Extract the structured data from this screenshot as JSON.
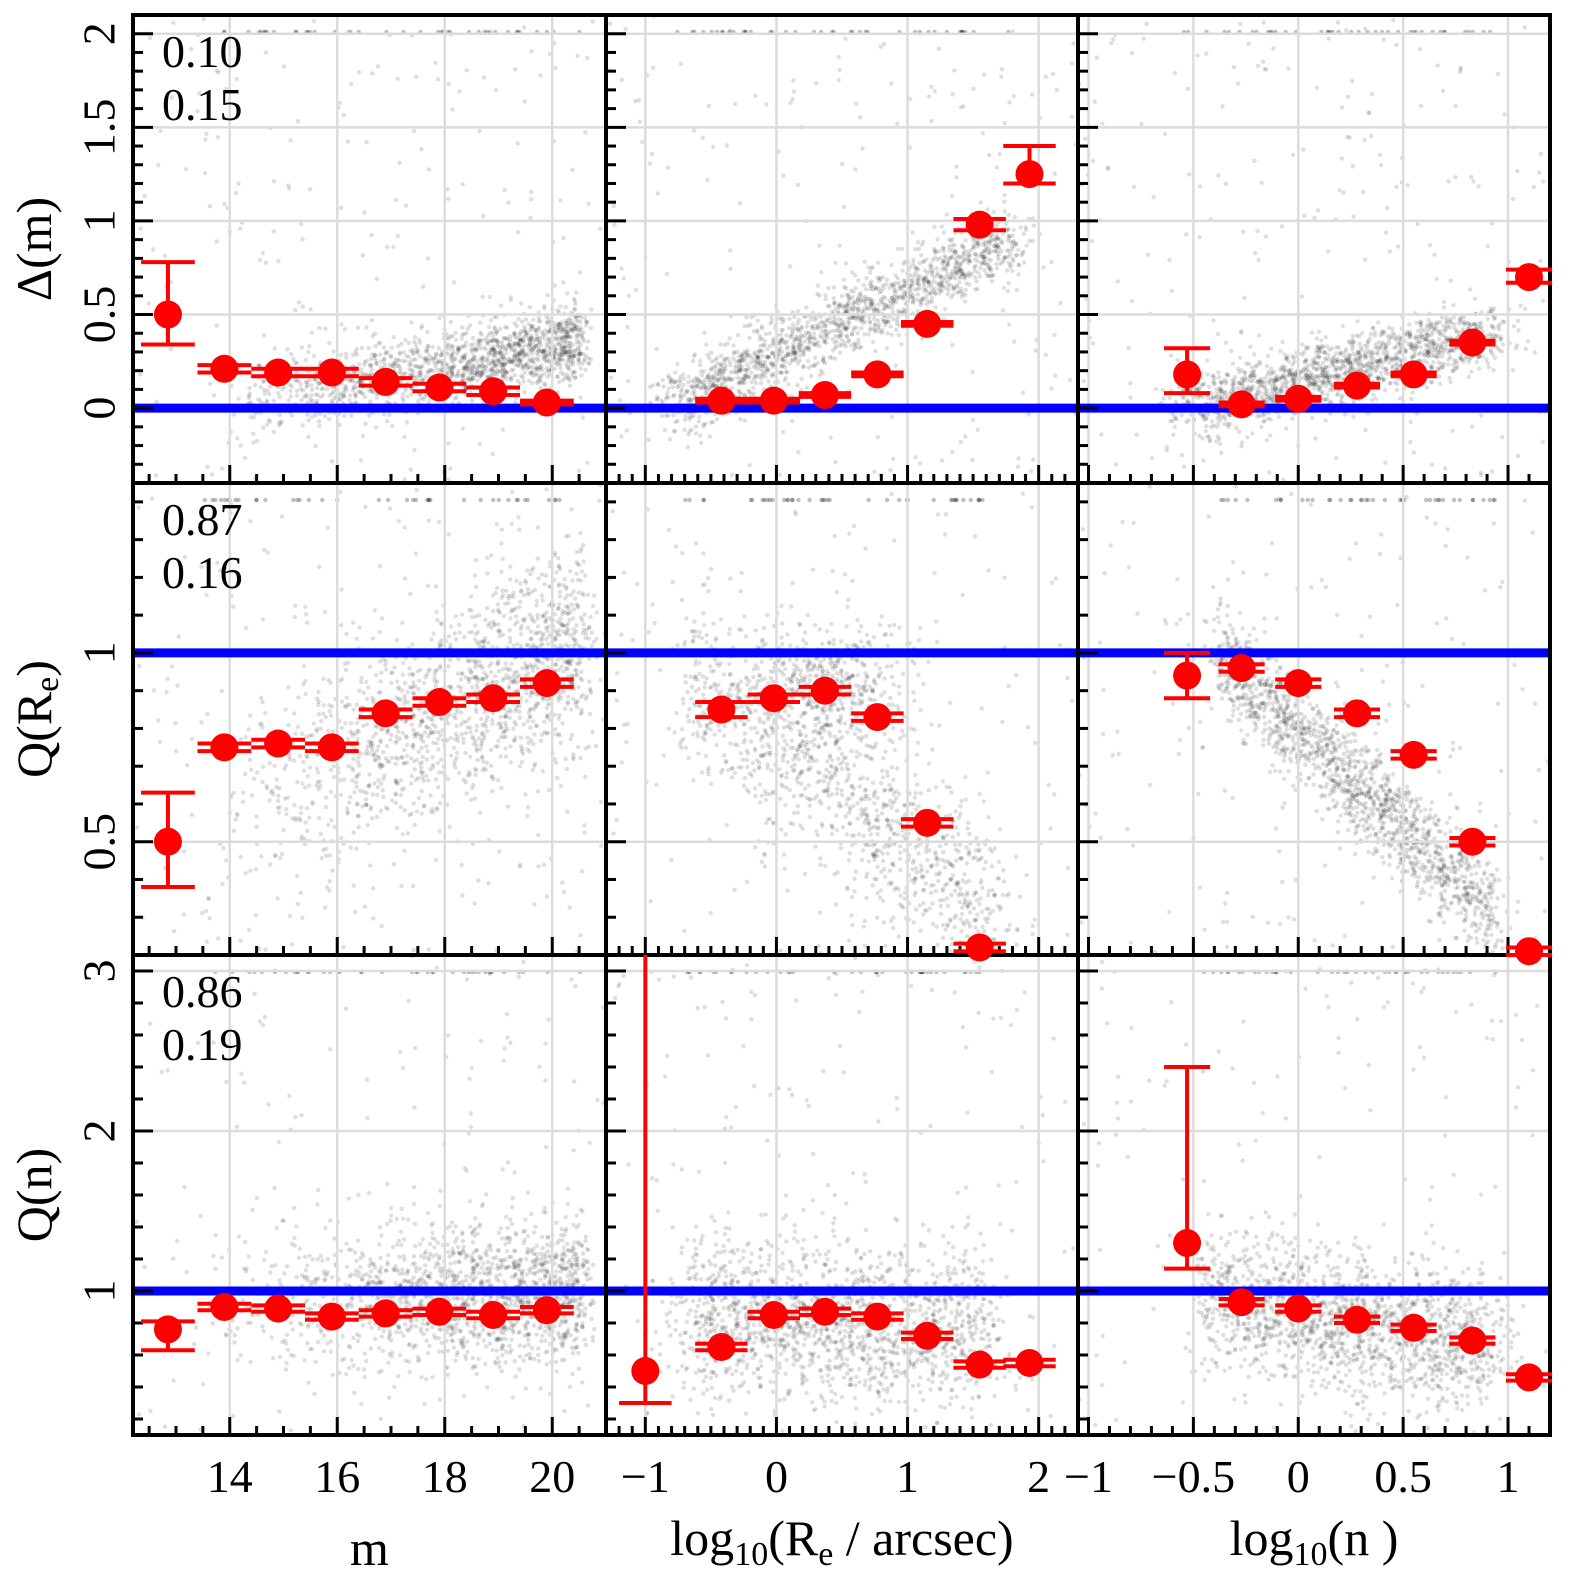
{
  "chart_data": {
    "type": "scatter",
    "layout": "3x3 grid of panels",
    "columns": [
      {
        "xlabel": "m",
        "xlim": [
          12.2,
          21.0
        ],
        "xticks": [
          14,
          16,
          18,
          20
        ],
        "xtick_labels": [
          "14",
          "16",
          "18",
          "20"
        ],
        "minor_step": 0.5
      },
      {
        "xlabel": "log₁₀(Rₑ / arcsec)",
        "xlabel_parts": {
          "pre": "log",
          "sub1": "10",
          "mid": "(R",
          "sub2": "e",
          "post": " / arcsec)"
        },
        "xlim": [
          -1.3,
          2.3
        ],
        "xticks": [
          -1,
          0,
          1,
          2
        ],
        "xtick_labels": [
          "−1",
          "0",
          "1",
          "2"
        ],
        "minor_step": 0.1
      },
      {
        "xlabel": "log₁₀(n )",
        "xlabel_parts": {
          "pre": "log",
          "sub1": "10",
          "mid": "(n )",
          "sub2": "",
          "post": ""
        },
        "xlim": [
          -1.05,
          1.2
        ],
        "xticks": [
          -1,
          -0.5,
          0,
          0.5,
          1
        ],
        "xtick_labels": [
          "−1",
          "−0.5",
          "0",
          "0.5",
          "1"
        ],
        "minor_step": 0.1
      }
    ],
    "rows": [
      {
        "ylabel": "Δ(m)",
        "ylabel_parts": {
          "pre": "Δ(m)",
          "sub": "",
          "post": ""
        },
        "ylim": [
          -0.4,
          2.1
        ],
        "yticks": [
          0,
          0.5,
          1,
          1.5,
          2
        ],
        "ytick_labels": [
          "0",
          "0.5",
          "1",
          "1.5",
          "2"
        ],
        "ref": 0,
        "stats": [
          "0.10",
          "0.15"
        ]
      },
      {
        "ylabel": "Q(Rₑ)",
        "ylabel_parts": {
          "pre": "Q(R",
          "sub": "e",
          "post": ")"
        },
        "ylim": [
          0.2,
          1.45
        ],
        "yticks": [
          0.5,
          1
        ],
        "ytick_labels": [
          "0.5",
          "1"
        ],
        "ref": 1,
        "stats": [
          "0.87",
          "0.16"
        ]
      },
      {
        "ylabel": "Q(n)",
        "ylabel_parts": {
          "pre": "Q(n)",
          "sub": "",
          "post": ""
        },
        "ylim": [
          0.1,
          3.1
        ],
        "yticks": [
          1,
          2,
          3
        ],
        "ytick_labels": [
          "1",
          "2",
          "3"
        ],
        "ref": 1,
        "stats": [
          "0.86",
          "0.19"
        ]
      }
    ],
    "series": [
      {
        "name": "panel r1c1",
        "row": 0,
        "col": 0,
        "hw": 0.5,
        "points": [
          [
            12.85,
            0.5,
            0.34,
            0.78
          ],
          [
            13.9,
            0.21,
            0.19,
            0.23
          ],
          [
            14.9,
            0.19,
            0.17,
            0.21
          ],
          [
            15.9,
            0.19,
            0.17,
            0.21
          ],
          [
            16.9,
            0.14,
            0.12,
            0.16
          ],
          [
            17.9,
            0.11,
            0.09,
            0.13
          ],
          [
            18.9,
            0.09,
            0.07,
            0.11
          ],
          [
            19.9,
            0.03,
            0.02,
            0.04
          ]
        ]
      },
      {
        "name": "panel r1c2",
        "row": 0,
        "col": 1,
        "hw": 0.2,
        "points": [
          [
            -0.42,
            0.04,
            0.03,
            0.05
          ],
          [
            -0.02,
            0.04,
            0.03,
            0.05
          ],
          [
            0.37,
            0.07,
            0.06,
            0.08
          ],
          [
            0.77,
            0.18,
            0.17,
            0.19
          ],
          [
            1.15,
            0.45,
            0.44,
            0.46
          ],
          [
            1.55,
            0.98,
            0.95,
            1.01
          ],
          [
            1.93,
            1.25,
            1.2,
            1.4
          ]
        ]
      },
      {
        "name": "panel r1c3",
        "row": 0,
        "col": 2,
        "hw": 0.11,
        "points": [
          [
            -0.53,
            0.18,
            0.08,
            0.32
          ],
          [
            -0.27,
            0.02,
            0.01,
            0.03
          ],
          [
            0.0,
            0.05,
            0.04,
            0.06
          ],
          [
            0.28,
            0.12,
            0.11,
            0.13
          ],
          [
            0.55,
            0.18,
            0.17,
            0.19
          ],
          [
            0.83,
            0.35,
            0.34,
            0.36
          ],
          [
            1.1,
            0.7,
            0.67,
            0.74
          ]
        ]
      },
      {
        "name": "panel r2c1",
        "row": 1,
        "col": 0,
        "hw": 0.5,
        "points": [
          [
            12.85,
            0.5,
            0.38,
            0.63
          ],
          [
            13.9,
            0.75,
            0.74,
            0.76
          ],
          [
            14.9,
            0.76,
            0.75,
            0.77
          ],
          [
            15.9,
            0.75,
            0.74,
            0.76
          ],
          [
            16.9,
            0.84,
            0.83,
            0.85
          ],
          [
            17.9,
            0.87,
            0.86,
            0.88
          ],
          [
            18.9,
            0.88,
            0.87,
            0.89
          ],
          [
            19.9,
            0.92,
            0.91,
            0.93
          ]
        ]
      },
      {
        "name": "panel r2c2",
        "row": 1,
        "col": 1,
        "hw": 0.2,
        "points": [
          [
            -0.42,
            0.85,
            0.83,
            0.87
          ],
          [
            -0.02,
            0.88,
            0.87,
            0.89
          ],
          [
            0.37,
            0.9,
            0.89,
            0.91
          ],
          [
            0.77,
            0.83,
            0.82,
            0.84
          ],
          [
            1.15,
            0.55,
            0.54,
            0.56
          ],
          [
            1.55,
            0.22,
            0.21,
            0.23
          ]
        ]
      },
      {
        "name": "panel r2c3",
        "row": 1,
        "col": 2,
        "hw": 0.11,
        "points": [
          [
            -0.53,
            0.94,
            0.88,
            1.0
          ],
          [
            -0.27,
            0.96,
            0.95,
            0.97
          ],
          [
            0.0,
            0.92,
            0.91,
            0.93
          ],
          [
            0.28,
            0.84,
            0.83,
            0.85
          ],
          [
            0.55,
            0.73,
            0.72,
            0.74
          ],
          [
            0.83,
            0.5,
            0.49,
            0.51
          ],
          [
            1.1,
            0.21,
            0.2,
            0.22
          ]
        ]
      },
      {
        "name": "panel r3c1",
        "row": 2,
        "col": 0,
        "hw": 0.5,
        "points": [
          [
            12.85,
            0.76,
            0.63,
            0.81
          ],
          [
            13.9,
            0.9,
            0.88,
            0.92
          ],
          [
            14.9,
            0.89,
            0.87,
            0.91
          ],
          [
            15.9,
            0.84,
            0.82,
            0.86
          ],
          [
            16.9,
            0.86,
            0.84,
            0.88
          ],
          [
            17.9,
            0.87,
            0.85,
            0.89
          ],
          [
            18.9,
            0.85,
            0.83,
            0.87
          ],
          [
            19.9,
            0.88,
            0.86,
            0.9
          ]
        ]
      },
      {
        "name": "panel r3c2",
        "row": 2,
        "col": 1,
        "hw": 0.2,
        "points": [
          [
            -1.0,
            0.5,
            0.3,
            3.1
          ],
          [
            -0.42,
            0.65,
            0.63,
            0.67
          ],
          [
            -0.02,
            0.85,
            0.83,
            0.87
          ],
          [
            0.37,
            0.87,
            0.85,
            0.89
          ],
          [
            0.77,
            0.84,
            0.82,
            0.86
          ],
          [
            1.15,
            0.72,
            0.7,
            0.74
          ],
          [
            1.55,
            0.54,
            0.52,
            0.56
          ],
          [
            1.93,
            0.55,
            0.53,
            0.57
          ]
        ]
      },
      {
        "name": "panel r3c3",
        "row": 2,
        "col": 2,
        "hw": 0.11,
        "points": [
          [
            -0.53,
            1.3,
            1.14,
            2.4
          ],
          [
            -0.27,
            0.93,
            0.91,
            0.95
          ],
          [
            0.0,
            0.89,
            0.87,
            0.91
          ],
          [
            0.28,
            0.82,
            0.8,
            0.84
          ],
          [
            0.55,
            0.77,
            0.75,
            0.79
          ],
          [
            0.83,
            0.69,
            0.67,
            0.71
          ],
          [
            1.1,
            0.46,
            0.44,
            0.48
          ]
        ]
      }
    ],
    "clouds": [
      {
        "row": 0,
        "col": 0,
        "n": 1700,
        "cx": [
          13.5,
          20.6
        ],
        "cy": [
          0.0,
          0.35
        ],
        "sx": 0.25,
        "sy": 0.1,
        "outlier": 0.14,
        "weights": "towards-faint"
      },
      {
        "row": 0,
        "col": 1,
        "n": 1700,
        "cx": [
          -0.8,
          1.8
        ],
        "cy": [
          0.0,
          0.9
        ],
        "sx": 0.35,
        "sy": 0.09,
        "outlier": 0.12
      },
      {
        "row": 0,
        "col": 2,
        "n": 1700,
        "cx": [
          -0.55,
          0.95
        ],
        "cy": [
          0.0,
          0.4
        ],
        "sx": 0.22,
        "sy": 0.09,
        "outlier": 0.12
      },
      {
        "row": 1,
        "col": 0,
        "n": 1700,
        "cx": [
          13.5,
          20.6
        ],
        "cy": [
          0.55,
          1.02
        ],
        "sx": 0.5,
        "sy": 0.14,
        "outlier": 0.12,
        "weights": "towards-faint"
      },
      {
        "row": 1,
        "col": 1,
        "n": 1700,
        "cx": [
          -0.7,
          1.7
        ],
        "cy": [
          0.95,
          0.3
        ],
        "sx": 0.35,
        "sy": 0.12,
        "outlier": 0.1,
        "blob": [
          0.4,
          0.92
        ]
      },
      {
        "row": 1,
        "col": 2,
        "n": 1700,
        "cx": [
          -0.4,
          0.95
        ],
        "cy": [
          1.0,
          0.3
        ],
        "sx": 0.12,
        "sy": 0.07,
        "outlier": 0.1
      },
      {
        "row": 2,
        "col": 0,
        "n": 1700,
        "cx": [
          13.5,
          20.6
        ],
        "cy": [
          0.9,
          1.0
        ],
        "sx": 0.5,
        "sy": 0.22,
        "outlier": 0.1,
        "weights": "towards-faint"
      },
      {
        "row": 2,
        "col": 1,
        "n": 1700,
        "cx": [
          -0.7,
          1.6
        ],
        "cy": [
          0.85,
          0.75
        ],
        "sx": 0.4,
        "sy": 0.25,
        "outlier": 0.1
      },
      {
        "row": 2,
        "col": 2,
        "n": 1700,
        "cx": [
          -0.45,
          0.95
        ],
        "cy": [
          0.95,
          0.65
        ],
        "sx": 0.2,
        "sy": 0.22,
        "outlier": 0.1
      }
    ]
  }
}
